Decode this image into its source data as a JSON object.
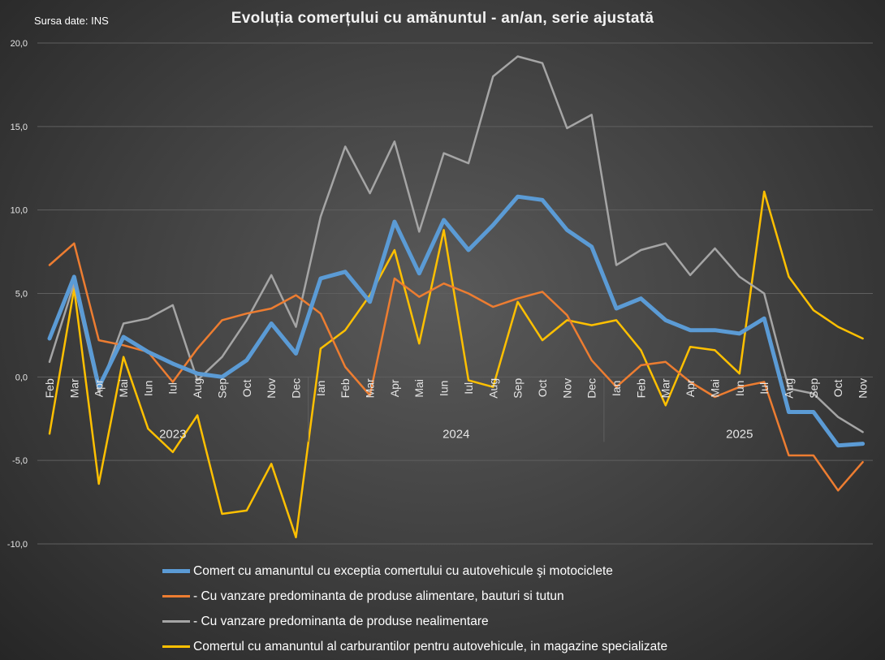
{
  "source_note": "Sursa date: INS",
  "colors": {
    "grid": "#5f5f5f",
    "axis_text": "#e6e6e6",
    "background": "#3f3f3f"
  },
  "chart_data": {
    "type": "line",
    "title": "Evoluția comerțului cu amănuntul - an/an, serie ajustată",
    "xlabel": "",
    "ylabel": "",
    "ylim": [
      -10,
      20
    ],
    "yticks": [
      -10,
      -5,
      0,
      5,
      10,
      15,
      20
    ],
    "ytick_labels": [
      "-10,0",
      "-5,0",
      "0,0",
      "5,0",
      "10,0",
      "15,0",
      "20,0"
    ],
    "grid": true,
    "legend_position": "bottom",
    "categories": [
      "Feb",
      "Mar",
      "Apr",
      "Mai",
      "Iun",
      "Iul",
      "Aug",
      "Sep",
      "Oct",
      "Nov",
      "Dec",
      "Ian",
      "Feb",
      "Mar",
      "Apr",
      "Mai",
      "Iun",
      "Iul",
      "Aug",
      "Sep",
      "Oct",
      "Nov",
      "Dec",
      "Ian",
      "Feb",
      "Mar",
      "Apr",
      "Mai",
      "Iun",
      "Iul",
      "Aug",
      "Sep",
      "Oct",
      "Nov"
    ],
    "year_groups": [
      {
        "label": "2023",
        "start": 0,
        "end": 10
      },
      {
        "label": "2024",
        "start": 11,
        "end": 22
      },
      {
        "label": "2025",
        "start": 23,
        "end": 33
      }
    ],
    "series": [
      {
        "name": "Comert cu amanuntul cu exceptia comertului cu autovehicule şi motociclete",
        "color": "#5b9bd5",
        "width": 5,
        "values": [
          2.3,
          6.0,
          -0.6,
          2.4,
          1.5,
          0.8,
          0.2,
          0.0,
          1.0,
          3.2,
          1.4,
          5.9,
          6.3,
          4.5,
          9.3,
          6.2,
          9.4,
          7.6,
          9.1,
          10.8,
          10.6,
          8.8,
          7.8,
          4.1,
          4.7,
          3.4,
          2.8,
          2.8,
          2.6,
          3.5,
          -2.1,
          -2.1,
          -4.1,
          -4.0
        ]
      },
      {
        "name": "- Cu vanzare predominanta de produse alimentare, bauturi si tutun",
        "color": "#ed7d31",
        "width": 2.5,
        "values": [
          6.7,
          8.0,
          2.2,
          1.9,
          1.5,
          -0.3,
          1.7,
          3.4,
          3.8,
          4.1,
          4.9,
          3.8,
          0.6,
          -1.1,
          5.9,
          4.8,
          5.6,
          5.0,
          4.2,
          4.7,
          5.1,
          3.7,
          1.0,
          -0.6,
          0.7,
          0.9,
          -0.3,
          -1.2,
          -0.6,
          -0.3,
          -4.7,
          -4.7,
          -6.8,
          -5.1
        ]
      },
      {
        "name": "- Cu vanzare predominanta de produse nealimentare",
        "color": "#a5a5a5",
        "width": 2.5,
        "values": [
          0.9,
          5.6,
          -0.9,
          3.2,
          3.5,
          4.3,
          -0.2,
          1.2,
          3.4,
          6.1,
          3.0,
          9.6,
          13.8,
          11.0,
          14.1,
          8.7,
          13.4,
          12.8,
          18.0,
          19.2,
          18.8,
          14.9,
          15.7,
          6.7,
          7.6,
          8.0,
          6.1,
          7.7,
          6.0,
          5.0,
          -0.7,
          -1.0,
          -2.4,
          -3.3
        ]
      },
      {
        "name": "Comertul cu amanuntul al carburantilor pentru autovehicule, in magazine specializate",
        "color": "#ffc000",
        "width": 2.5,
        "values": [
          -3.4,
          5.3,
          -6.4,
          1.2,
          -3.1,
          -4.5,
          -2.3,
          -8.2,
          -8.0,
          -5.2,
          -9.6,
          1.7,
          2.8,
          4.9,
          7.6,
          2.0,
          8.8,
          -0.2,
          -0.6,
          4.5,
          2.2,
          3.4,
          3.1,
          3.4,
          1.6,
          -1.7,
          1.8,
          1.6,
          0.2,
          11.1,
          6.0,
          4.0,
          3.0,
          2.3
        ]
      }
    ]
  }
}
